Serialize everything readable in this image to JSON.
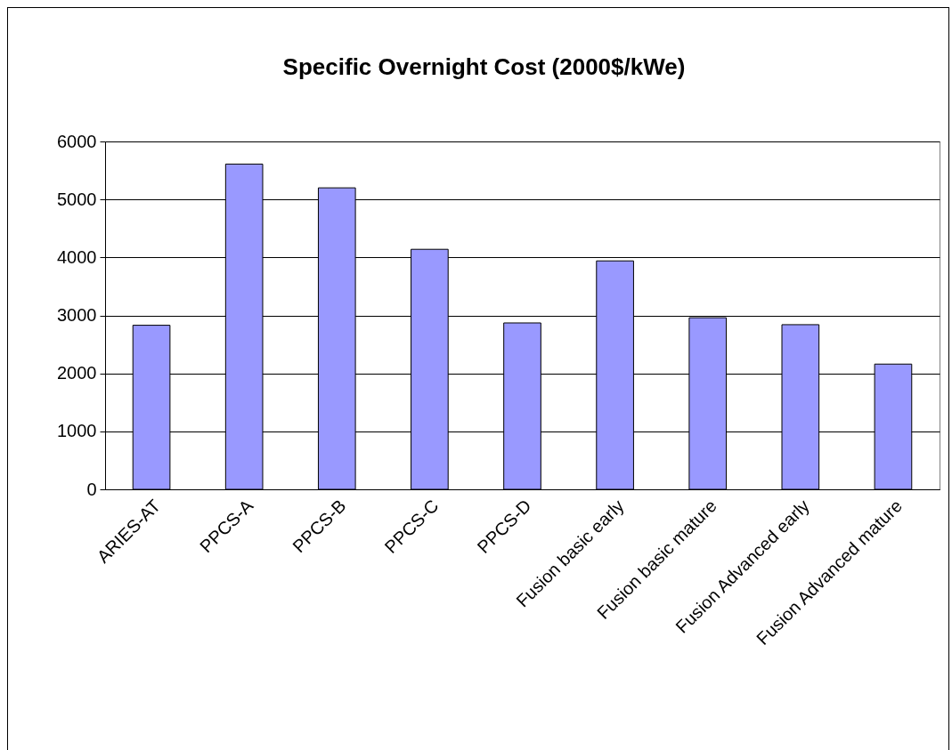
{
  "chart_data": {
    "type": "bar",
    "title": "Specific Overnight Cost (2000$/kWe)",
    "categories": [
      "ARIES-AT",
      "PPCS-A",
      "PPCS-B",
      "PPCS-C",
      "PPCS-D",
      "Fusion basic early",
      "Fusion basic mature",
      "Fusion Advanced early",
      "Fusion Advanced mature"
    ],
    "values": [
      2830,
      5610,
      5200,
      4140,
      2870,
      3940,
      2960,
      2840,
      2160
    ],
    "color": "#9999ff",
    "ylim": [
      0,
      6000
    ],
    "yticks": [
      0,
      1000,
      2000,
      3000,
      4000,
      5000,
      6000
    ],
    "grid": "y"
  }
}
